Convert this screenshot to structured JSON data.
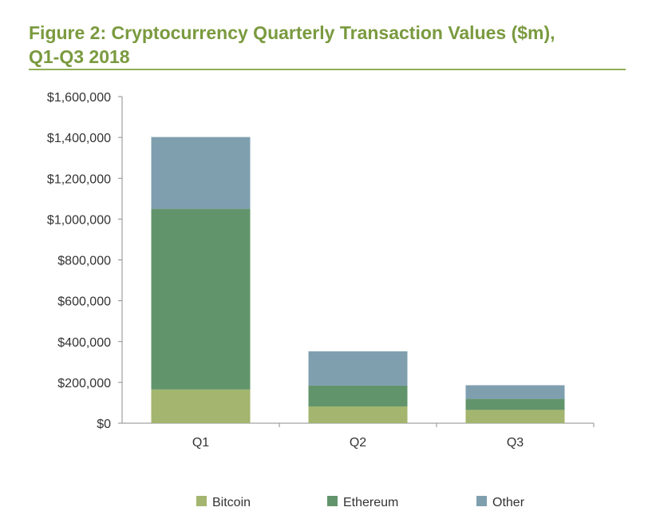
{
  "chart_data": {
    "type": "bar",
    "stacked": true,
    "title": "Figure 2: Cryptocurrency Quarterly Transaction Values ($m),\nQ1-Q3 2018",
    "categories": [
      "Q1",
      "Q2",
      "Q3"
    ],
    "series": [
      {
        "name": "Bitcoin",
        "color": "#a3b56e",
        "values": [
          165000,
          82000,
          65000
        ]
      },
      {
        "name": "Ethereum",
        "color": "#62946b",
        "values": [
          885000,
          102000,
          54000
        ]
      },
      {
        "name": "Other",
        "color": "#7f9faf",
        "values": [
          352000,
          168000,
          67000
        ]
      }
    ],
    "ylim": [
      0,
      1600000
    ],
    "yticks": [
      {
        "value": 0,
        "label": "$0"
      },
      {
        "value": 200000,
        "label": "$200,000"
      },
      {
        "value": 400000,
        "label": "$400,000"
      },
      {
        "value": 600000,
        "label": "$600,000"
      },
      {
        "value": 800000,
        "label": "$800,000"
      },
      {
        "value": 1000000,
        "label": "$1,000,000"
      },
      {
        "value": 1200000,
        "label": "$1,200,000"
      },
      {
        "value": 1400000,
        "label": "$1,400,000"
      },
      {
        "value": 1600000,
        "label": "$1,600,000"
      }
    ],
    "xlabel": "",
    "ylabel": "",
    "grid": false,
    "legend_position": "bottom"
  }
}
